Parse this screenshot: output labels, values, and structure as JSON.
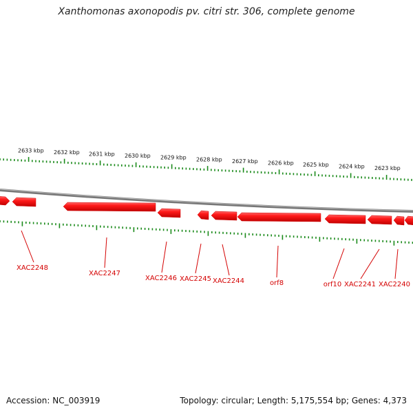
{
  "title": "Xanthomonas axonopodis pv. citri str. 306, complete genome",
  "footer": {
    "accession": "Accession: NC_003919",
    "summary": "Topology: circular; Length: 5,175,554 bp; Genes: 4,373"
  },
  "colors": {
    "gene": "#ff0000",
    "gene_dark": "#b80000",
    "tick": "#1a8a1a",
    "backbone": "#7a7a7a"
  },
  "scale_labels": [
    "2633 kbp",
    "2632 kbp",
    "2631 kbp",
    "2630 kbp",
    "2629 kbp",
    "2628 kbp",
    "2627 kbp",
    "2626 kbp",
    "2625 kbp",
    "2624 kbp",
    "2623 kbp"
  ],
  "gene_labels": [
    "XAC2248",
    "XAC2247",
    "XAC2246",
    "XAC2245",
    "XAC2244",
    "orf8",
    "orf10",
    "XAC2241",
    "XAC2240"
  ]
}
